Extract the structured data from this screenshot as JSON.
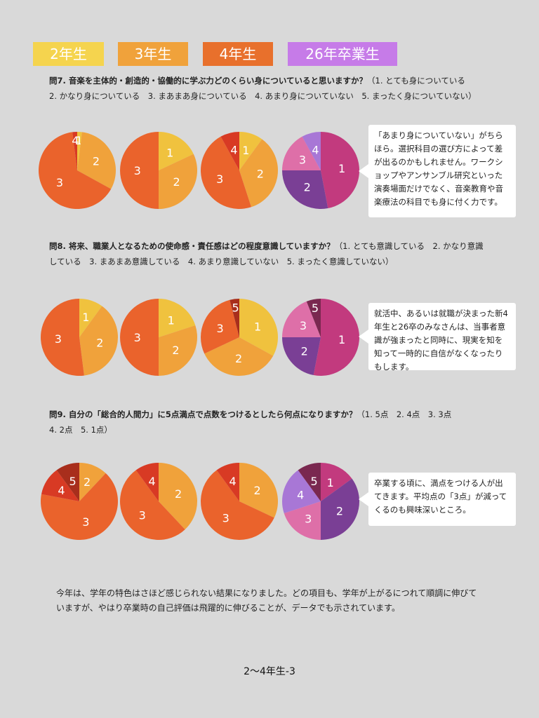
{
  "legend": [
    {
      "label": "2年生",
      "color": "#f5d44e"
    },
    {
      "label": "3年生",
      "color": "#f0a23b"
    },
    {
      "label": "4年生",
      "color": "#e8702c"
    },
    {
      "label": "26年卒業生",
      "color": "#c67be8"
    }
  ],
  "colors": {
    "grade_1": "#f0c23e",
    "grade_2": "#f0a23b",
    "grade_3": "#ea632c",
    "grade_4": "#d83a24",
    "grade_5": "#a82e1c",
    "grad_1": "#c23a7e",
    "grad_2": "#7a3f95",
    "grad_3": "#de6fa8",
    "grad_4": "#a877d6",
    "grad_5": "#7a2850"
  },
  "q7": {
    "title": "問7. 音楽を主体的・創造的・協働的に学ぶ力どのくらい身についていると思いますか？",
    "options_line1": "（1. とても身についている",
    "options_line2": "2. かなり身についている　3. まあまあ身についている　4. あまり身についていない　5. まったく身についていない）",
    "comment": "「あまり身についていない」がちらほら。選択科目の選び方によって差が出るのかもしれません。ワークショップやアンサンブル研究といった演奏場面だけでなく、音楽教育や音楽療法の科目でも身に付く力です。"
  },
  "q8": {
    "title": "問8. 将来、職業人となるための使命感・責任感はどの程度意識していますか？",
    "options_line1": "（1. とても意識している　2. かなり意識",
    "options_line2": "している　3. まあまあ意識している　4. あまり意識していない　5. まったく意識していない）",
    "comment": "就活中、あるいは就職が決まった新4年生と26卒のみなさんは、当事者意識が強まったと同時に、現実を知を知って一時的に自信がなくなったりもします。"
  },
  "q9": {
    "title": "問9. 自分の「総合的人間力」に5点満点で点数をつけるとしたら何点になりますか？",
    "options_line1": "（1. 5点　2. 4点　3. 3点",
    "options_line2": "4. 2点　5. 1点）",
    "comment": "卒業する頃に、満点をつける人が出てきます。平均点の「3点」が減ってくるのも興味深いところ。"
  },
  "summary": "今年は、学年の特色はさほど感じられない結果になりました。どの項目も、学年が上がるにつれて順調に伸びていますが、やはり卒業時の自己評価は飛躍的に伸びることが、データでも示されています。",
  "footer": "2〜4年生-3",
  "chart_data": [
    {
      "type": "pie",
      "question": "問7",
      "charts": [
        {
          "group": "2年生",
          "palette": "grade",
          "slices": [
            {
              "label": "1",
              "value": 2
            },
            {
              "label": "2",
              "value": 31
            },
            {
              "label": "3",
              "value": 65
            },
            {
              "label": "4",
              "value": 2
            }
          ]
        },
        {
          "group": "3年生",
          "palette": "grade",
          "slices": [
            {
              "label": "1",
              "value": 18
            },
            {
              "label": "2",
              "value": 32
            },
            {
              "label": "3",
              "value": 50
            }
          ]
        },
        {
          "group": "4年生",
          "palette": "grade",
          "slices": [
            {
              "label": "1",
              "value": 10
            },
            {
              "label": "2",
              "value": 35
            },
            {
              "label": "3",
              "value": 47
            },
            {
              "label": "4",
              "value": 8
            }
          ]
        },
        {
          "group": "26年卒業生",
          "palette": "grad",
          "slices": [
            {
              "label": "1",
              "value": 47
            },
            {
              "label": "2",
              "value": 28
            },
            {
              "label": "3",
              "value": 17
            },
            {
              "label": "4",
              "value": 8
            }
          ]
        }
      ]
    },
    {
      "type": "pie",
      "question": "問8",
      "charts": [
        {
          "group": "2年生",
          "palette": "grade",
          "slices": [
            {
              "label": "1",
              "value": 10
            },
            {
              "label": "2",
              "value": 38
            },
            {
              "label": "3",
              "value": 52
            }
          ]
        },
        {
          "group": "3年生",
          "palette": "grade",
          "slices": [
            {
              "label": "1",
              "value": 20
            },
            {
              "label": "2",
              "value": 30
            },
            {
              "label": "3",
              "value": 50
            }
          ]
        },
        {
          "group": "4年生",
          "palette": "grade",
          "slices": [
            {
              "label": "1",
              "value": 33
            },
            {
              "label": "2",
              "value": 35
            },
            {
              "label": "3",
              "value": 28
            },
            {
              "label": "5",
              "value": 4
            }
          ]
        },
        {
          "group": "26年卒業生",
          "palette": "grad",
          "slices": [
            {
              "label": "1",
              "value": 53
            },
            {
              "label": "2",
              "value": 22
            },
            {
              "label": "3",
              "value": 19
            },
            {
              "label": "5",
              "value": 6
            }
          ]
        }
      ]
    },
    {
      "type": "pie",
      "question": "問9",
      "charts": [
        {
          "group": "2年生",
          "palette": "grade",
          "slices": [
            {
              "label": "2",
              "value": 12
            },
            {
              "label": "3",
              "value": 66
            },
            {
              "label": "4",
              "value": 12
            },
            {
              "label": "5",
              "value": 10
            }
          ]
        },
        {
          "group": "3年生",
          "palette": "grade",
          "slices": [
            {
              "label": "2",
              "value": 38
            },
            {
              "label": "3",
              "value": 52
            },
            {
              "label": "4",
              "value": 10
            }
          ]
        },
        {
          "group": "4年生",
          "palette": "grade",
          "slices": [
            {
              "label": "2",
              "value": 32
            },
            {
              "label": "3",
              "value": 58
            },
            {
              "label": "4",
              "value": 10
            }
          ]
        },
        {
          "group": "26年卒業生",
          "palette": "grad",
          "slices": [
            {
              "label": "1",
              "value": 15
            },
            {
              "label": "2",
              "value": 35
            },
            {
              "label": "3",
              "value": 20
            },
            {
              "label": "4",
              "value": 20
            },
            {
              "label": "5",
              "value": 10
            }
          ]
        }
      ]
    }
  ]
}
